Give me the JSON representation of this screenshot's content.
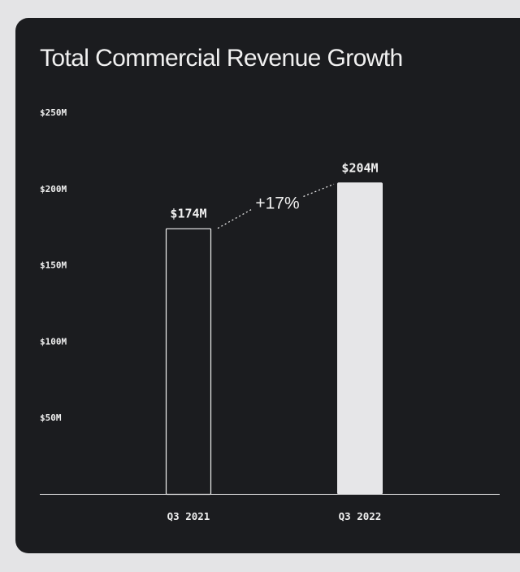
{
  "colors": {
    "page_bg": "#e4e4e6",
    "card_bg": "#1b1c1f",
    "text": "#f0f0f0",
    "bar_fill": "#e6e6e8",
    "bar_outline": "#f0f0f0"
  },
  "chart_data": {
    "type": "bar",
    "title": "Total Commercial Revenue Growth",
    "xlabel": "",
    "ylabel": "",
    "ylim": [
      0,
      250
    ],
    "grid": false,
    "y_ticks": [
      {
        "value": 50,
        "label": "$50M"
      },
      {
        "value": 100,
        "label": "$100M"
      },
      {
        "value": 150,
        "label": "$150M"
      },
      {
        "value": 200,
        "label": "$200M"
      },
      {
        "value": 250,
        "label": "$250M"
      }
    ],
    "categories": [
      "Q3 2021",
      "Q3 2022"
    ],
    "values": [
      174,
      204
    ],
    "value_labels": [
      "$174M",
      "$204M"
    ],
    "bar_styles": [
      "outline",
      "filled"
    ],
    "annotation": {
      "text": "+17%",
      "from": 0,
      "to": 1,
      "style": "dotted-connector"
    }
  }
}
